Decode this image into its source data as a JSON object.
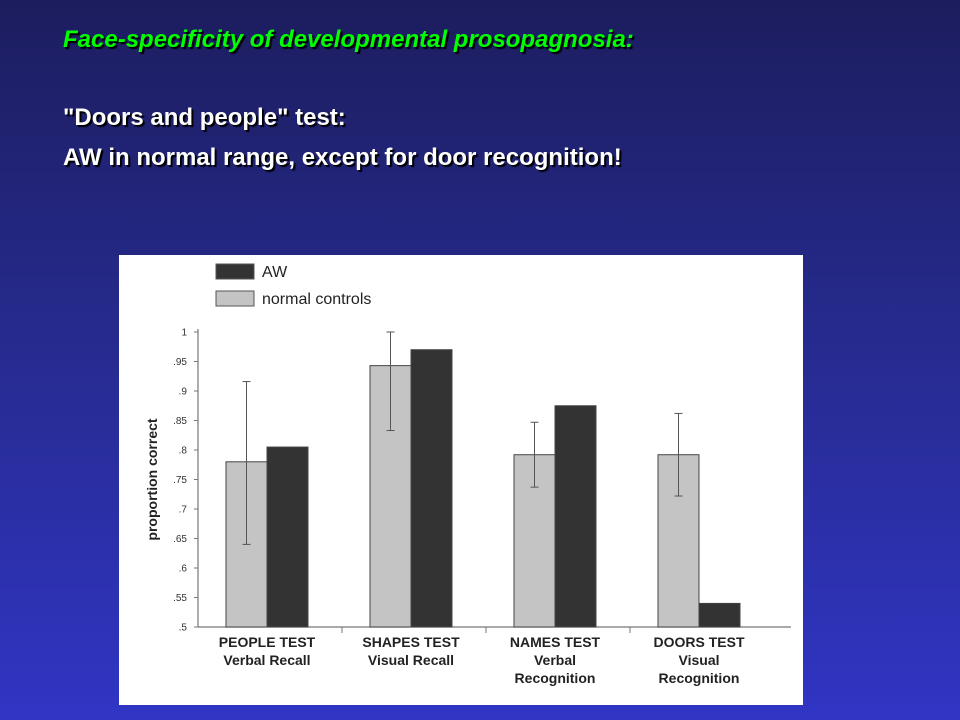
{
  "slide": {
    "title": "Face-specificity  of developmental  prosopagnosia:",
    "line1": "\"Doors and people\" test:",
    "line2": "AW in normal range, except for door recognition!"
  },
  "colors": {
    "title": "#00ff00",
    "text": "#ffffff",
    "controls_bar": "#c4c4c4",
    "aw_bar": "#333333"
  },
  "chart_data": {
    "type": "bar",
    "ylabel": "proportion correct",
    "ylim": [
      0.5,
      1.0
    ],
    "yticks": [
      "1",
      ".95",
      ".9",
      ".85",
      ".8",
      ".75",
      ".7",
      ".65",
      ".6",
      ".55",
      ".5"
    ],
    "categories": [
      [
        "PEOPLE TEST",
        "Verbal Recall"
      ],
      [
        "SHAPES TEST",
        "Visual Recall"
      ],
      [
        "NAMES TEST",
        "Verbal",
        "Recognition"
      ],
      [
        "DOORS TEST",
        "Visual",
        "Recognition"
      ]
    ],
    "series": [
      {
        "name": "normal controls",
        "values": [
          0.78,
          0.943,
          0.792,
          0.792
        ],
        "error_low": [
          0.64,
          0.833,
          0.737,
          0.722
        ],
        "error_high": [
          0.916,
          1.0,
          0.847,
          0.862
        ]
      },
      {
        "name": "AW",
        "values": [
          0.805,
          0.97,
          0.875,
          0.54
        ]
      }
    ],
    "legend": {
      "position": "top-left",
      "order": [
        "AW",
        "normal controls"
      ]
    }
  }
}
